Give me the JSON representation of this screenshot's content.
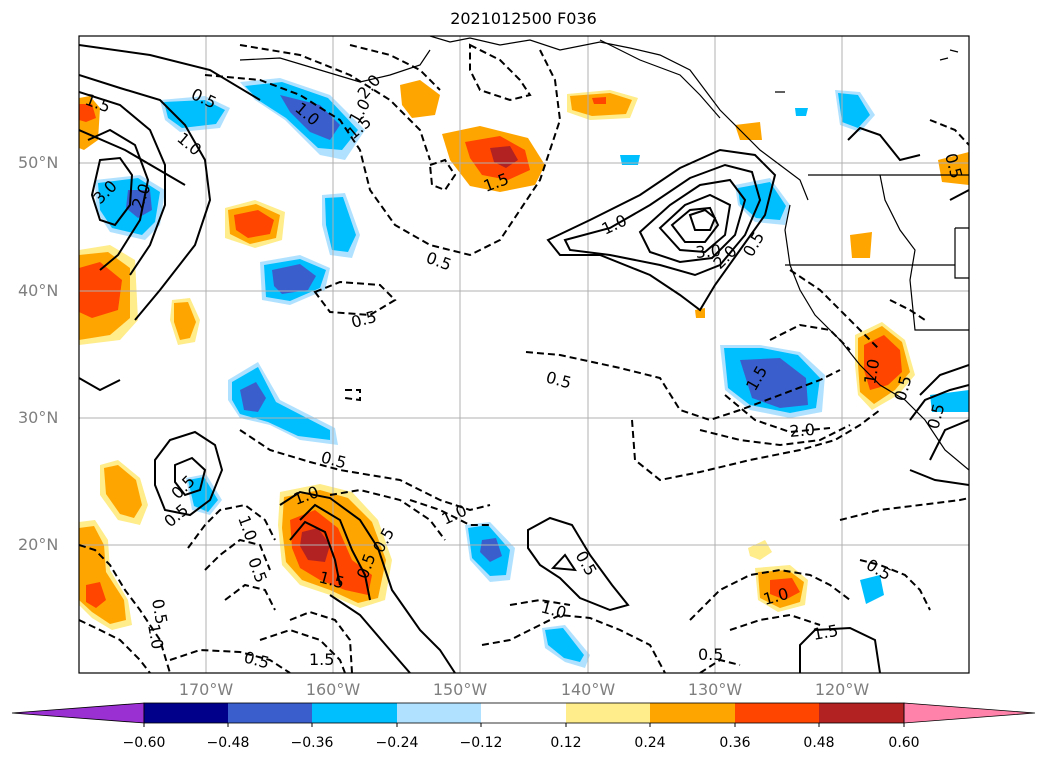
{
  "title": "2021012500 F036",
  "lat_labels": [
    "50°N",
    "40°N",
    "30°N",
    "20°N"
  ],
  "lon_labels": [
    "170°W",
    "160°W",
    "150°W",
    "140°W",
    "130°W",
    "120°W"
  ],
  "colorbar": {
    "ticks": [
      "−0.60",
      "−0.48",
      "−0.36",
      "−0.24",
      "−0.12",
      "0.12",
      "0.24",
      "0.36",
      "0.48",
      "0.60"
    ],
    "colors": [
      "#9b30d2",
      "#00008b",
      "#3a5fcd",
      "#00bfff",
      "#b0e2ff",
      "#ffffff",
      "#ffec8b",
      "#ffa500",
      "#ff4500",
      "#b22222",
      "#ff82ab"
    ]
  },
  "contour_labels": [
    "1.5",
    "0.5",
    "1.0",
    "3.0",
    "2.0",
    "1.0",
    "1.0",
    "2.0",
    "1.5",
    "0.5",
    "0.5",
    "1.5",
    "1.0",
    "3.0",
    "2.0",
    "0.5",
    "0.5",
    "1.5",
    "2.0",
    "0.5",
    "1.0",
    "0.5",
    "1.0",
    "0.5",
    "0.5",
    "1.0",
    "0.5",
    "1.5",
    "0.5",
    "1.0",
    "0.5",
    "0.5",
    "1.0",
    "0.5",
    "0.5",
    "1.5",
    "1.0",
    "0.5",
    "1.5",
    "1.0",
    "0.5",
    "0.5",
    "0.5"
  ]
}
